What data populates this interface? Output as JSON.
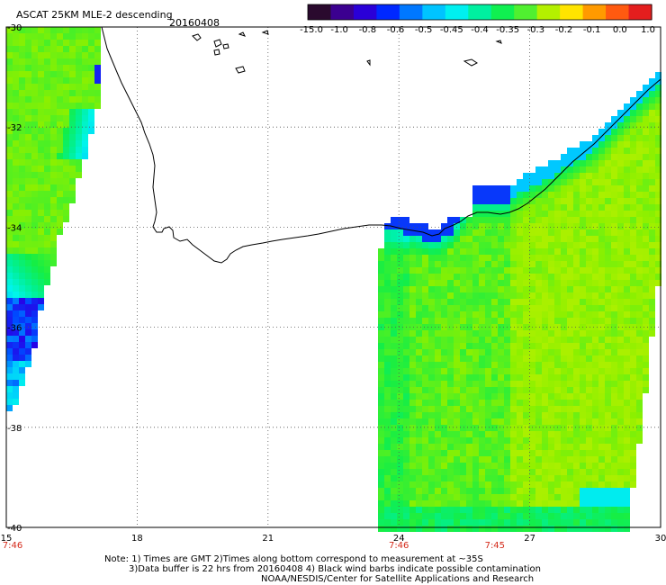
{
  "header": {
    "product": "ASCAT 25KM MLE-2 descending",
    "date": "20160408"
  },
  "colorbar": {
    "ticks": [
      "-15.0",
      "-1.0",
      "-0.8",
      "-0.6",
      "-0.5",
      "-0.45",
      "-0.4",
      "-0.35",
      "-0.3",
      "-0.2",
      "-0.1",
      "0.0",
      "1.0"
    ],
    "colors": [
      "#2a0a2e",
      "#3b0090",
      "#2a00d8",
      "#0028ff",
      "#0078ff",
      "#00c4ff",
      "#00f0f0",
      "#00f0a0",
      "#10f050",
      "#50f030",
      "#b4f000",
      "#ffe400",
      "#ff9a00",
      "#ff5a10",
      "#e41e1e"
    ]
  },
  "map": {
    "lon_ticks": [
      "15",
      "18",
      "21",
      "24",
      "27",
      "30"
    ],
    "lat_ticks": [
      "-30",
      "-32",
      "-34",
      "-36",
      "-38",
      "-40"
    ],
    "lon_range": [
      15,
      30
    ],
    "lat_range": [
      -40,
      -30
    ],
    "grid": true,
    "times": [
      {
        "label": "7:46",
        "lon": 15
      },
      {
        "label": "7:46",
        "lon": 24
      },
      {
        "label": "7:45",
        "lon": 26.2
      }
    ]
  },
  "footer": {
    "line1": "Note: 1) Times are GMT 2)Times along bottom correspond to measurement at ~35S",
    "line2": "3)Data buffer is 22 hrs from 20160408 4) Black wind barbs indicate possible contamination",
    "line3": "NOAA/NESDIS/Center for Satellite Applications and Research"
  }
}
